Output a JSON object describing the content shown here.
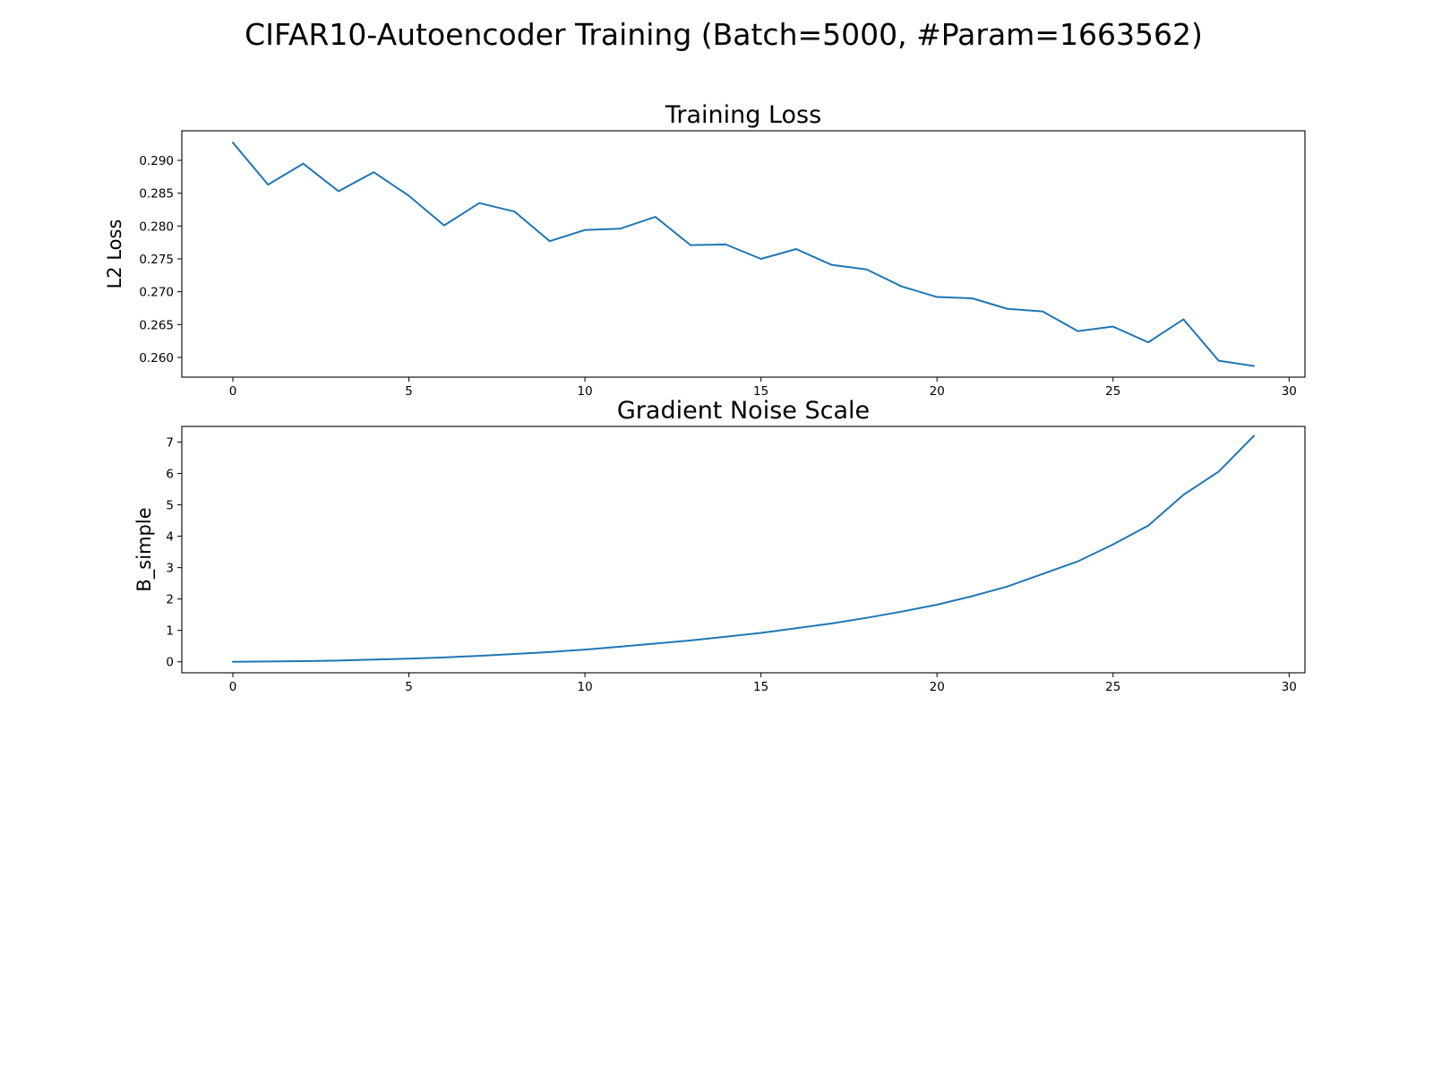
{
  "figure": {
    "title": "CIFAR10-Autoencoder Training (Batch=5000, #Param=1663562)"
  },
  "colors": {
    "series": "#1f77b4"
  },
  "chart_data": [
    {
      "type": "line",
      "title": "Training Loss",
      "xlabel": "",
      "ylabel": "L2 Loss",
      "xlim": [
        -1.45,
        30.45
      ],
      "ylim": [
        0.257,
        0.2945
      ],
      "xticks": [
        0,
        5,
        10,
        15,
        20,
        25,
        30
      ],
      "yticks": [
        0.26,
        0.265,
        0.27,
        0.275,
        0.28,
        0.285,
        0.29
      ],
      "ytick_labels": [
        "0.260",
        "0.265",
        "0.270",
        "0.275",
        "0.280",
        "0.285",
        "0.290"
      ],
      "grid": false,
      "x": [
        0,
        1,
        2,
        3,
        4,
        5,
        6,
        7,
        8,
        9,
        10,
        11,
        12,
        13,
        14,
        15,
        16,
        17,
        18,
        19,
        20,
        21,
        22,
        23,
        24,
        25,
        26,
        27,
        28,
        29
      ],
      "series": [
        {
          "values": [
            0.2927,
            0.2863,
            0.2895,
            0.2853,
            0.2882,
            0.2846,
            0.2801,
            0.2835,
            0.2822,
            0.2777,
            0.2794,
            0.2796,
            0.2814,
            0.2771,
            0.2772,
            0.275,
            0.2765,
            0.2741,
            0.2734,
            0.2708,
            0.2692,
            0.269,
            0.2674,
            0.267,
            0.264,
            0.2647,
            0.2623,
            0.2658,
            0.2595,
            0.2587
          ]
        }
      ]
    },
    {
      "type": "line",
      "title": "Gradient Noise Scale",
      "xlabel": "",
      "ylabel": "B_simple",
      "xlim": [
        -1.45,
        30.45
      ],
      "ylim": [
        -0.35,
        7.5
      ],
      "xticks": [
        0,
        5,
        10,
        15,
        20,
        25,
        30
      ],
      "yticks": [
        0,
        1,
        2,
        3,
        4,
        5,
        6,
        7
      ],
      "ytick_labels": [
        "0",
        "1",
        "2",
        "3",
        "4",
        "5",
        "6",
        "7"
      ],
      "grid": false,
      "x": [
        0,
        1,
        2,
        3,
        4,
        5,
        6,
        7,
        8,
        9,
        10,
        11,
        12,
        13,
        14,
        15,
        16,
        17,
        18,
        19,
        20,
        21,
        22,
        23,
        24,
        25,
        26,
        27,
        28,
        29
      ],
      "series": [
        {
          "values": [
            0.0,
            0.01,
            0.02,
            0.04,
            0.07,
            0.1,
            0.14,
            0.19,
            0.25,
            0.31,
            0.39,
            0.48,
            0.58,
            0.68,
            0.8,
            0.92,
            1.07,
            1.22,
            1.4,
            1.6,
            1.82,
            2.09,
            2.4,
            2.8,
            3.2,
            3.74,
            4.34,
            5.32,
            6.06,
            7.2
          ]
        }
      ]
    }
  ]
}
